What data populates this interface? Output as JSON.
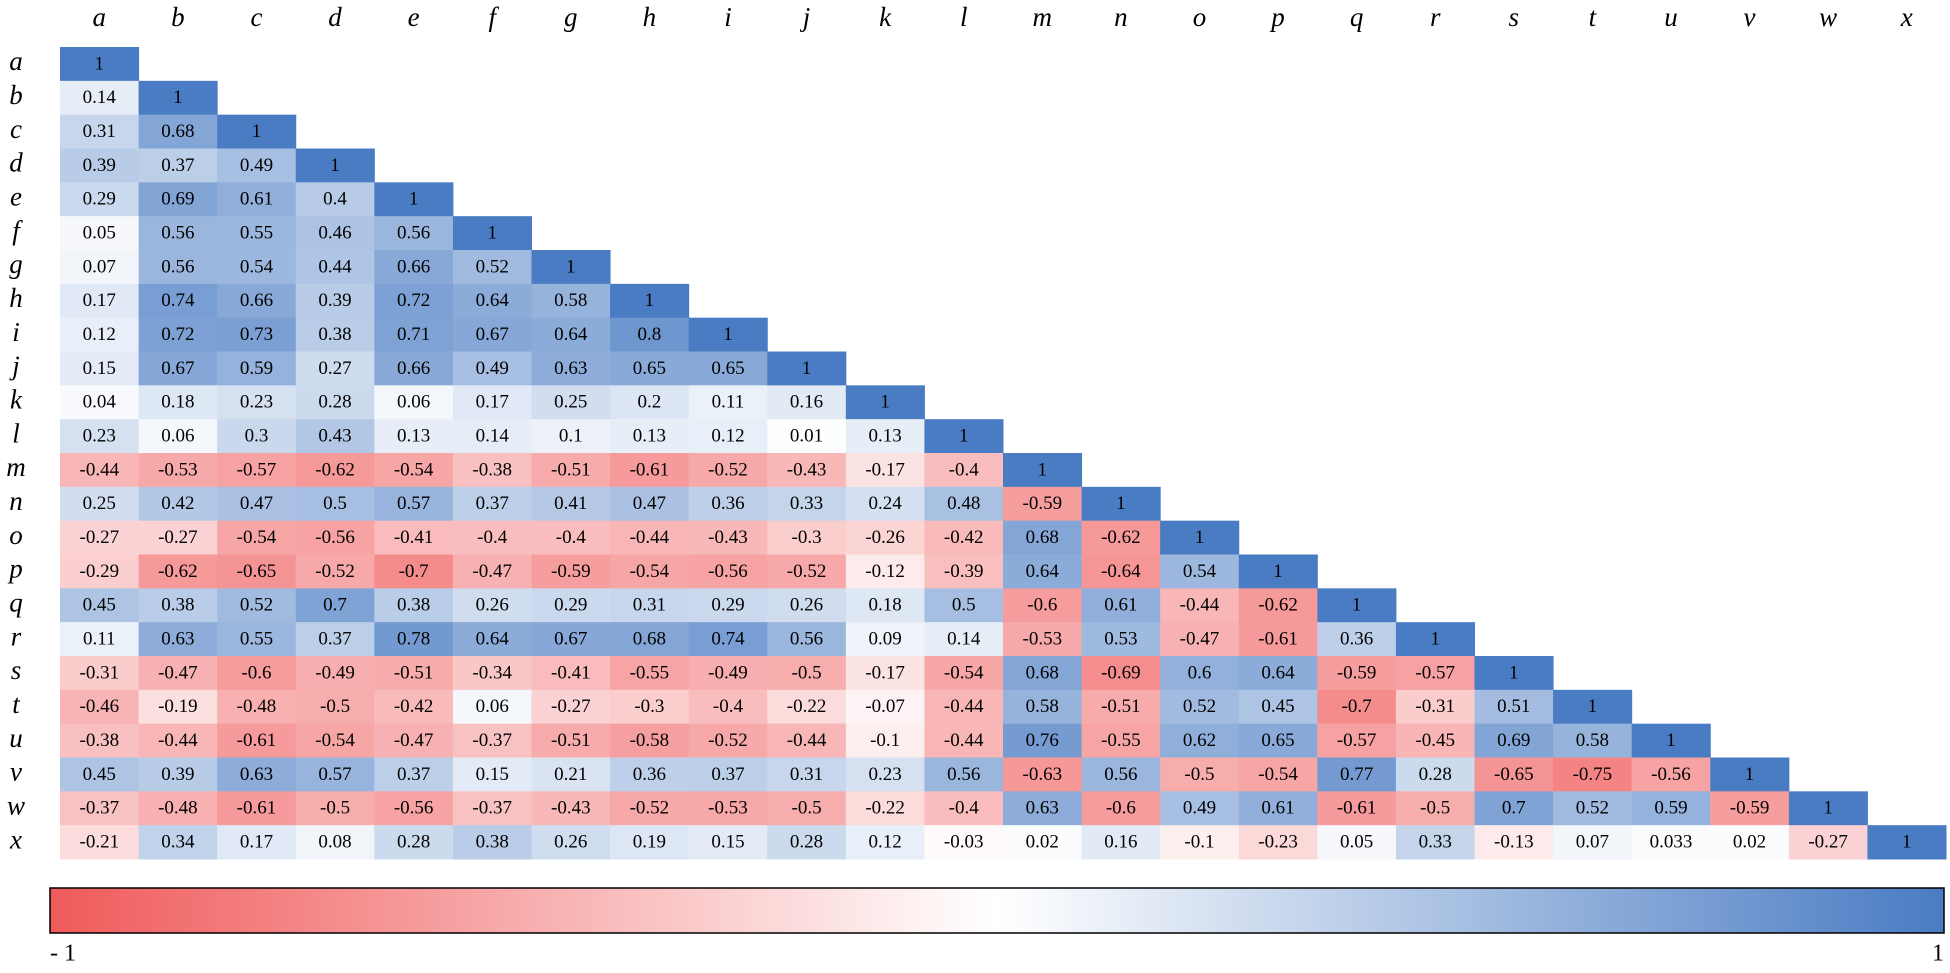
{
  "chart_data": {
    "type": "heatmap",
    "x": [
      "a",
      "b",
      "c",
      "d",
      "e",
      "f",
      "g",
      "h",
      "i",
      "j",
      "k",
      "l",
      "m",
      "n",
      "o",
      "p",
      "q",
      "r",
      "s",
      "t",
      "u",
      "v",
      "w",
      "x"
    ],
    "y": [
      "a",
      "b",
      "c",
      "d",
      "e",
      "f",
      "g",
      "h",
      "i",
      "j",
      "k",
      "l",
      "m",
      "n",
      "o",
      "p",
      "q",
      "r",
      "s",
      "t",
      "u",
      "v",
      "w",
      "x"
    ],
    "z": [
      [
        1
      ],
      [
        0.14,
        1
      ],
      [
        0.31,
        0.68,
        1
      ],
      [
        0.39,
        0.37,
        0.49,
        1
      ],
      [
        0.29,
        0.69,
        0.61,
        0.4,
        1
      ],
      [
        0.05,
        0.56,
        0.55,
        0.46,
        0.56,
        1
      ],
      [
        0.07,
        0.56,
        0.54,
        0.44,
        0.66,
        0.52,
        1
      ],
      [
        0.17,
        0.74,
        0.66,
        0.39,
        0.72,
        0.64,
        0.58,
        1
      ],
      [
        0.12,
        0.72,
        0.73,
        0.38,
        0.71,
        0.67,
        0.64,
        0.8,
        1
      ],
      [
        0.15,
        0.67,
        0.59,
        0.27,
        0.66,
        0.49,
        0.63,
        0.65,
        0.65,
        1
      ],
      [
        0.04,
        0.18,
        0.23,
        0.28,
        0.06,
        0.17,
        0.25,
        0.2,
        0.11,
        0.16,
        1
      ],
      [
        0.23,
        0.06,
        0.3,
        0.43,
        0.13,
        0.14,
        0.1,
        0.13,
        0.12,
        0.01,
        0.13,
        1
      ],
      [
        -0.44,
        -0.53,
        -0.57,
        -0.62,
        -0.54,
        -0.38,
        -0.51,
        -0.61,
        -0.52,
        -0.43,
        -0.17,
        -0.4,
        1
      ],
      [
        0.25,
        0.42,
        0.47,
        0.5,
        0.57,
        0.37,
        0.41,
        0.47,
        0.36,
        0.33,
        0.24,
        0.48,
        -0.59,
        1
      ],
      [
        -0.27,
        -0.27,
        -0.54,
        -0.56,
        -0.41,
        -0.4,
        -0.4,
        -0.44,
        -0.43,
        -0.3,
        -0.26,
        -0.42,
        0.68,
        -0.62,
        1
      ],
      [
        -0.29,
        -0.62,
        -0.65,
        -0.52,
        -0.7,
        -0.47,
        -0.59,
        -0.54,
        -0.56,
        -0.52,
        -0.12,
        -0.39,
        0.64,
        -0.64,
        0.54,
        1
      ],
      [
        0.45,
        0.38,
        0.52,
        0.7,
        0.38,
        0.26,
        0.29,
        0.31,
        0.29,
        0.26,
        0.18,
        0.5,
        -0.6,
        0.61,
        -0.44,
        -0.62,
        1
      ],
      [
        0.11,
        0.63,
        0.55,
        0.37,
        0.78,
        0.64,
        0.67,
        0.68,
        0.74,
        0.56,
        0.09,
        0.14,
        -0.53,
        0.53,
        -0.47,
        -0.61,
        0.36,
        1
      ],
      [
        -0.31,
        -0.47,
        -0.6,
        -0.49,
        -0.51,
        -0.34,
        -0.41,
        -0.55,
        -0.49,
        -0.5,
        -0.17,
        -0.54,
        0.68,
        -0.69,
        0.6,
        0.64,
        -0.59,
        -0.57,
        1
      ],
      [
        -0.46,
        -0.19,
        -0.48,
        -0.5,
        -0.42,
        0.06,
        -0.27,
        -0.3,
        -0.4,
        -0.22,
        -0.07,
        -0.44,
        0.58,
        -0.51,
        0.52,
        0.45,
        -0.7,
        -0.31,
        0.51,
        1
      ],
      [
        -0.38,
        -0.44,
        -0.61,
        -0.54,
        -0.47,
        -0.37,
        -0.51,
        -0.58,
        -0.52,
        -0.44,
        -0.1,
        -0.44,
        0.76,
        -0.55,
        0.62,
        0.65,
        -0.57,
        -0.45,
        0.69,
        0.58,
        1
      ],
      [
        0.45,
        0.39,
        0.63,
        0.57,
        0.37,
        0.15,
        0.21,
        0.36,
        0.37,
        0.31,
        0.23,
        0.56,
        -0.63,
        0.56,
        -0.5,
        -0.54,
        0.77,
        0.28,
        -0.65,
        -0.75,
        -0.56,
        1
      ],
      [
        -0.37,
        -0.48,
        -0.61,
        -0.5,
        -0.56,
        -0.37,
        -0.43,
        -0.52,
        -0.53,
        -0.5,
        -0.22,
        -0.4,
        0.63,
        -0.6,
        0.49,
        0.61,
        -0.61,
        -0.5,
        0.7,
        0.52,
        0.59,
        -0.59,
        1
      ],
      [
        -0.21,
        0.34,
        0.17,
        0.08,
        0.28,
        0.38,
        0.26,
        0.19,
        0.15,
        0.28,
        0.12,
        -0.03,
        0.02,
        0.16,
        -0.1,
        -0.23,
        0.05,
        0.33,
        -0.13,
        0.07,
        0.033,
        0.02,
        -0.27,
        1
      ]
    ],
    "colors": [
      "#f05a5b",
      "#ffffff",
      "#4a7cc3"
    ],
    "zlim": [
      -1,
      1
    ],
    "zticks": [
      {
        "value": -1,
        "label": "- 1"
      },
      1
    ]
  }
}
